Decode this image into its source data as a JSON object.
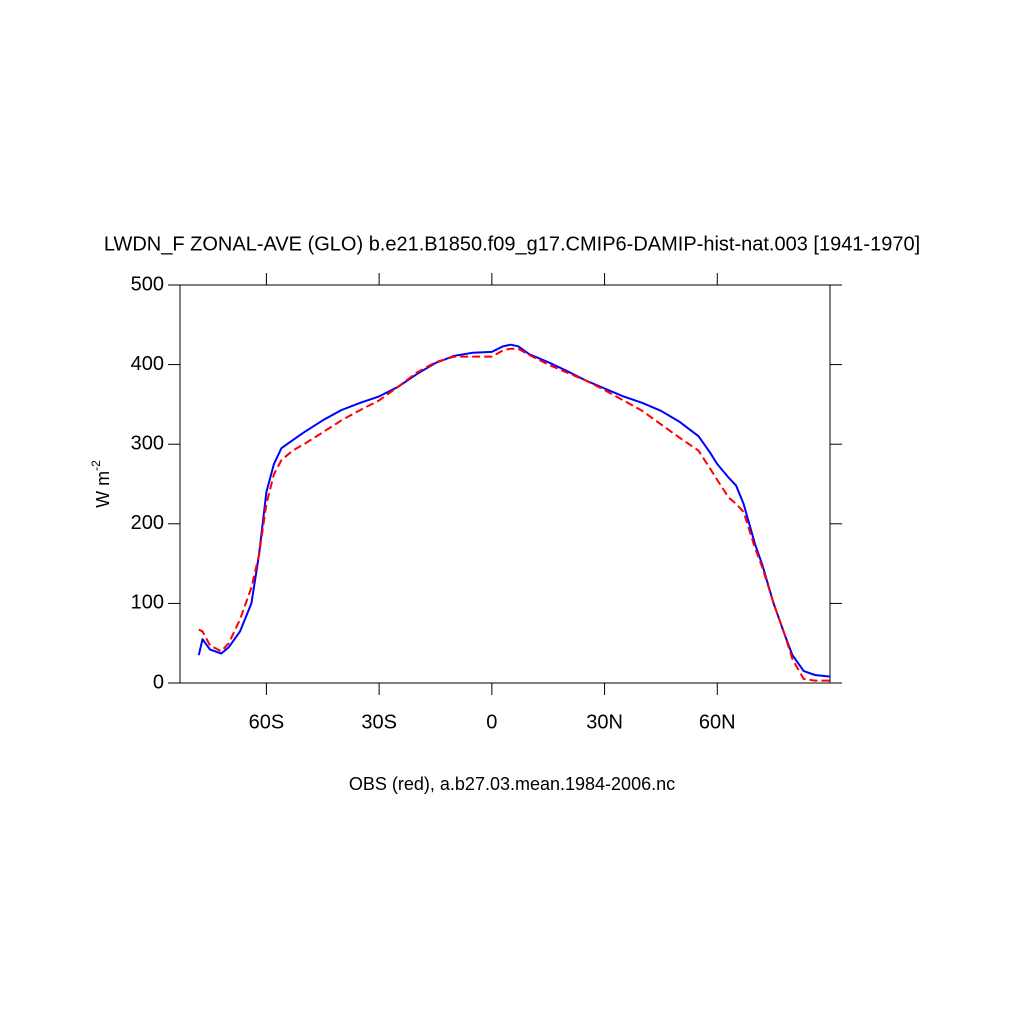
{
  "chart_data": {
    "type": "line",
    "title": "LWDN_F ZONAL-AVE (GLO) b.e21.B1850.f09_g17.CMIP6-DAMIP-hist-nat.003 [1941-1970]",
    "xlabel": "OBS (red), a.b27.03.mean.1984-2006.nc",
    "ylabel": "W m",
    "ylabel_exponent": "-2",
    "xlim": [
      -83,
      90
    ],
    "ylim": [
      0,
      500
    ],
    "xticks": [
      {
        "value": -60,
        "label": "60S"
      },
      {
        "value": -30,
        "label": "30S"
      },
      0,
      {
        "value": 30,
        "label": "30N"
      },
      {
        "value": 60,
        "label": "60N"
      }
    ],
    "yticks": [
      0,
      100,
      200,
      300,
      400,
      500
    ],
    "x": [
      -78,
      -77,
      -75,
      -72,
      -70,
      -67,
      -64,
      -62,
      -60,
      -58,
      -56,
      -53,
      -50,
      -45,
      -40,
      -35,
      -30,
      -25,
      -20,
      -15,
      -10,
      -5,
      0,
      3,
      5,
      7,
      10,
      15,
      20,
      25,
      30,
      35,
      40,
      45,
      50,
      55,
      58,
      60,
      63,
      65,
      67,
      70,
      72,
      75,
      78,
      80,
      83,
      86,
      90
    ],
    "series": [
      {
        "color": "#0000ff",
        "dash": false,
        "values": [
          35,
          55,
          42,
          37,
          45,
          65,
          100,
          160,
          240,
          275,
          295,
          305,
          315,
          330,
          343,
          352,
          360,
          372,
          388,
          402,
          411,
          415,
          416,
          423,
          425,
          423,
          413,
          403,
          392,
          380,
          370,
          360,
          352,
          342,
          328,
          310,
          290,
          275,
          258,
          248,
          225,
          175,
          148,
          100,
          60,
          35,
          15,
          10,
          8
        ]
      },
      {
        "color": "#ff0000",
        "dash": true,
        "values": [
          67,
          65,
          47,
          40,
          50,
          80,
          120,
          160,
          225,
          262,
          280,
          292,
          300,
          315,
          330,
          343,
          355,
          372,
          390,
          403,
          410,
          410,
          410,
          418,
          420,
          420,
          412,
          400,
          390,
          380,
          368,
          355,
          342,
          325,
          308,
          292,
          270,
          255,
          233,
          225,
          215,
          170,
          145,
          100,
          60,
          30,
          5,
          3,
          3
        ]
      }
    ]
  }
}
